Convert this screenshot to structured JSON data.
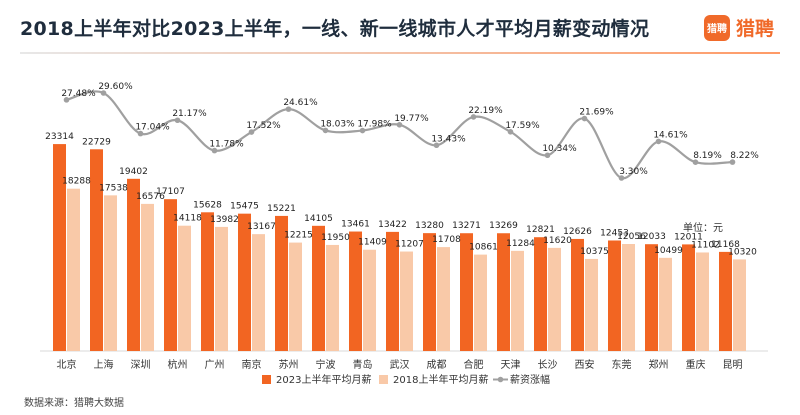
{
  "title": "2018上半年对比2023上半年，一线、新一线城市人才平均月薪变动情况",
  "logo": {
    "mark": "猎聘",
    "text": "猎聘"
  },
  "unit": "单位：元",
  "source": "数据来源：猎聘大数据",
  "colors": {
    "s2023": "#f26522",
    "s2018": "#f9c9a8",
    "growth": "#a0a0a0"
  },
  "chart_data": {
    "type": "bar",
    "categories": [
      "北京",
      "上海",
      "深圳",
      "杭州",
      "广州",
      "南京",
      "苏州",
      "宁波",
      "青岛",
      "武汉",
      "成都",
      "合肥",
      "天津",
      "长沙",
      "西安",
      "东莞",
      "郑州",
      "重庆",
      "昆明"
    ],
    "series": [
      {
        "name": "2023上半年平均月薪",
        "values": [
          23314,
          22729,
          19402,
          17107,
          15628,
          15475,
          15221,
          14105,
          13461,
          13422,
          13280,
          13271,
          13269,
          12821,
          12626,
          12453,
          12033,
          12011,
          11168
        ]
      },
      {
        "name": "2018上半年平均月薪",
        "values": [
          18288,
          17538,
          16576,
          14118,
          13982,
          13167,
          12215,
          11950,
          11409,
          11207,
          11708,
          10861,
          11284,
          11620,
          10375,
          12056,
          10499,
          11102,
          10320
        ]
      },
      {
        "name": "薪资涨幅",
        "type": "line",
        "values": [
          27.48,
          29.6,
          17.04,
          21.17,
          11.78,
          17.52,
          24.61,
          18.03,
          17.98,
          19.77,
          13.43,
          22.19,
          17.59,
          10.34,
          21.69,
          3.3,
          14.61,
          8.19,
          8.22
        ],
        "format": "percent"
      }
    ],
    "legend_position": "bottom"
  }
}
